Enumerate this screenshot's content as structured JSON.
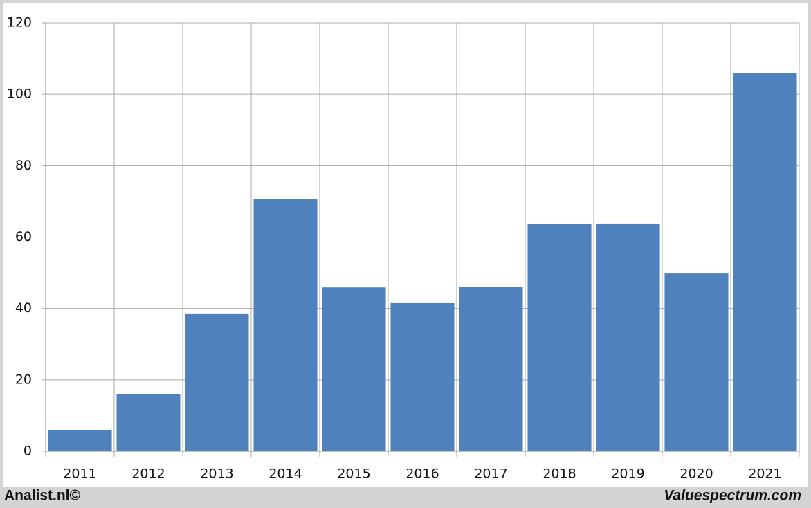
{
  "chart_data": {
    "type": "bar",
    "categories": [
      "2011",
      "2012",
      "2013",
      "2014",
      "2015",
      "2016",
      "2017",
      "2018",
      "2019",
      "2020",
      "2021"
    ],
    "values": [
      6,
      16,
      38.6,
      70.6,
      45.9,
      41.5,
      46.1,
      63.6,
      63.8,
      49.8,
      105.9
    ],
    "color": "#4f81bd",
    "ylim": [
      0,
      120
    ],
    "yticks": [
      0,
      20,
      40,
      60,
      80,
      100,
      120
    ],
    "grid": true,
    "footer_left": "Analist.nl©",
    "footer_right": "Valuespectrum.com"
  }
}
